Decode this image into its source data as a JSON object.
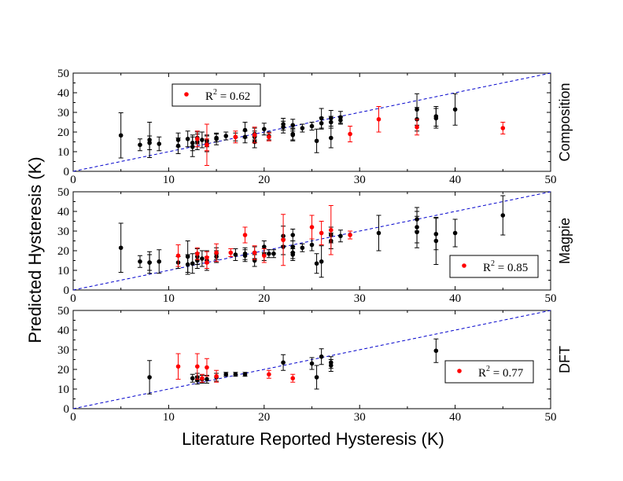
{
  "chart_data": [
    {
      "type": "scatter",
      "panel_label": "Composition",
      "legend": {
        "text": "R",
        "sup": "2",
        "rest": " = 0.62",
        "placement": "top-left"
      },
      "xlim": [
        0,
        50
      ],
      "ylim": [
        0,
        50
      ],
      "xticks": [
        "0",
        "10",
        "20",
        "30",
        "40",
        "50"
      ],
      "yticks": [
        "0",
        "10",
        "20",
        "30",
        "40",
        "50"
      ],
      "reference_line": {
        "from": [
          0,
          0
        ],
        "to": [
          50,
          50
        ],
        "style": "dashed",
        "color": "#0000cc"
      },
      "series": [
        {
          "color": "#000000",
          "points": [
            [
              5,
              18.3,
              11.5
            ],
            [
              7,
              13.5,
              3
            ],
            [
              8,
              14.5,
              3.5
            ],
            [
              8,
              16,
              9
            ],
            [
              9,
              14,
              3.5
            ],
            [
              11,
              13,
              4
            ],
            [
              11,
              16,
              3.5
            ],
            [
              12,
              16.5,
              4
            ],
            [
              12.5,
              14.5,
              4
            ],
            [
              12.5,
              12.5,
              5
            ],
            [
              13,
              17,
              3
            ],
            [
              13,
              15,
              4
            ],
            [
              13.5,
              16,
              4
            ],
            [
              14,
              14,
              4
            ],
            [
              14,
              15.5,
              3
            ],
            [
              15,
              17,
              2
            ],
            [
              15,
              16.5,
              3
            ],
            [
              16,
              18,
              2
            ],
            [
              17,
              17.5,
              2
            ],
            [
              18,
              21,
              4
            ],
            [
              18,
              17.5,
              3
            ],
            [
              19,
              15,
              3
            ],
            [
              19,
              17.5,
              3
            ],
            [
              19,
              19,
              3
            ],
            [
              20,
              21.5,
              3
            ],
            [
              20.5,
              18,
              2
            ],
            [
              22,
              24,
              3
            ],
            [
              22,
              22.5,
              3
            ],
            [
              23,
              23.5,
              3
            ],
            [
              23,
              18.5,
              3
            ],
            [
              23,
              19,
              3
            ],
            [
              24,
              22,
              2
            ],
            [
              25,
              23,
              2
            ],
            [
              25.5,
              15.5,
              6
            ],
            [
              26,
              27,
              5
            ],
            [
              26,
              24.5,
              3
            ],
            [
              27,
              17,
              5
            ],
            [
              27,
              27,
              4
            ],
            [
              27,
              25,
              3
            ],
            [
              28,
              26,
              2
            ],
            [
              28,
              27.5,
              3
            ],
            [
              36,
              31.5,
              8
            ],
            [
              36,
              26.5,
              6
            ],
            [
              38,
              28,
              5
            ],
            [
              38,
              27,
              5
            ],
            [
              40,
              31.5,
              8
            ]
          ]
        },
        {
          "color": "#ff0000",
          "points": [
            [
              13,
              16.5,
              4
            ],
            [
              14,
              13.5,
              10.5
            ],
            [
              14,
              13.5,
              3
            ],
            [
              17,
              17.5,
              3
            ],
            [
              19,
              18.5,
              4
            ],
            [
              20.5,
              17.5,
              2
            ],
            [
              29,
              19,
              4
            ],
            [
              32,
              26.5,
              6.5
            ],
            [
              36,
              22.5,
              4
            ],
            [
              45,
              22,
              3
            ]
          ]
        }
      ]
    },
    {
      "type": "scatter",
      "panel_label": "Magpie",
      "legend": {
        "text": "R",
        "sup": "2",
        "rest": " = 0.85",
        "placement": "bottom-right"
      },
      "xlim": [
        0,
        50
      ],
      "ylim": [
        0,
        50
      ],
      "xticks": [
        "0",
        "10",
        "20",
        "30",
        "40",
        "50"
      ],
      "yticks": [
        "0",
        "10",
        "20",
        "30",
        "40",
        "50"
      ],
      "reference_line": {
        "from": [
          0,
          0
        ],
        "to": [
          50,
          50
        ],
        "style": "dashed",
        "color": "#0000cc"
      },
      "series": [
        {
          "color": "#000000",
          "points": [
            [
              5,
              21.5,
              12.5
            ],
            [
              7,
              14.5,
              3
            ],
            [
              8,
              14,
              4
            ],
            [
              8,
              14,
              5.5
            ],
            [
              9,
              14.5,
              6
            ],
            [
              11,
              14,
              3
            ],
            [
              12,
              17,
              8
            ],
            [
              12,
              13,
              5
            ],
            [
              12.5,
              13.5,
              5
            ],
            [
              13,
              15,
              4
            ],
            [
              13,
              17,
              4
            ],
            [
              13.5,
              16,
              4
            ],
            [
              14,
              15,
              5
            ],
            [
              15,
              18.5,
              3
            ],
            [
              15,
              17,
              3
            ],
            [
              17,
              18,
              3
            ],
            [
              18,
              18.5,
              3
            ],
            [
              18,
              17.5,
              3
            ],
            [
              19,
              15,
              3
            ],
            [
              19,
              19,
              3
            ],
            [
              20,
              18,
              3
            ],
            [
              20,
              22,
              3
            ],
            [
              20.5,
              18.5,
              2
            ],
            [
              21,
              18.5,
              2
            ],
            [
              22,
              27.5,
              5
            ],
            [
              22,
              22,
              4
            ],
            [
              23,
              28,
              3
            ],
            [
              23,
              22,
              3
            ],
            [
              23,
              19,
              3
            ],
            [
              23,
              18,
              3
            ],
            [
              24,
              21.5,
              2
            ],
            [
              25,
              23,
              3
            ],
            [
              25.5,
              13.5,
              5
            ],
            [
              26,
              14.5,
              8
            ],
            [
              27,
              25,
              4
            ],
            [
              27,
              28,
              4
            ],
            [
              28,
              27.5,
              3
            ],
            [
              32,
              29,
              9
            ],
            [
              36,
              36,
              6
            ],
            [
              36,
              32,
              8
            ],
            [
              36,
              29.5,
              8
            ],
            [
              38,
              25,
              12
            ],
            [
              38,
              28.5,
              8
            ],
            [
              40,
              29,
              7
            ],
            [
              45,
              38,
              10
            ]
          ]
        },
        {
          "color": "#ff0000",
          "points": [
            [
              11,
              17.5,
              5.5
            ],
            [
              13,
              18.5,
              3
            ],
            [
              14,
              14,
              3
            ],
            [
              14,
              16.5,
              3
            ],
            [
              15,
              19,
              4.5
            ],
            [
              16.5,
              19,
              2
            ],
            [
              18,
              28,
              4
            ],
            [
              19,
              19,
              3.5
            ],
            [
              20,
              17.5,
              3.5
            ],
            [
              22,
              25.5,
              13
            ],
            [
              25,
              32,
              6
            ],
            [
              26,
              29,
              6
            ],
            [
              27,
              30.5,
              12.5
            ],
            [
              29,
              28,
              2
            ]
          ]
        }
      ]
    },
    {
      "type": "scatter",
      "panel_label": "DFT",
      "legend": {
        "text": "R",
        "sup": "2",
        "rest": " = 0.77",
        "placement": "bottom-right"
      },
      "xlim": [
        0,
        50
      ],
      "ylim": [
        0,
        50
      ],
      "xticks": [
        "0",
        "10",
        "20",
        "30",
        "40",
        "50"
      ],
      "yticks": [
        "0",
        "10",
        "20",
        "30",
        "40",
        "50"
      ],
      "reference_line": {
        "from": [
          0,
          0
        ],
        "to": [
          50,
          50
        ],
        "style": "dashed",
        "color": "#0000cc"
      },
      "series": [
        {
          "color": "#000000",
          "points": [
            [
              8,
              16,
              8.5
            ],
            [
              12.5,
              15.5,
              2
            ],
            [
              13,
              14.5,
              2
            ],
            [
              13,
              16,
              2
            ],
            [
              13.5,
              15,
              2
            ],
            [
              14,
              15,
              2
            ],
            [
              15,
              16,
              2
            ],
            [
              16,
              17.5,
              1
            ],
            [
              17,
              17.5,
              1
            ],
            [
              18,
              17.5,
              1
            ],
            [
              22,
              23.5,
              4
            ],
            [
              25,
              23,
              3
            ],
            [
              25.5,
              16,
              6
            ],
            [
              26,
              26.5,
              4
            ],
            [
              27,
              22,
              3
            ],
            [
              27,
              23.5,
              3
            ],
            [
              38,
              29.5,
              6
            ]
          ]
        },
        {
          "color": "#ff0000",
          "points": [
            [
              11,
              21.5,
              6.5
            ],
            [
              13,
              21.5,
              6.5
            ],
            [
              14,
              21,
              4.5
            ],
            [
              15,
              16.5,
              3
            ],
            [
              20.5,
              17.5,
              2
            ],
            [
              23,
              15.5,
              2
            ],
            [
              13.5,
              15.5,
              2
            ]
          ]
        }
      ]
    }
  ],
  "ylabel": "Predicted Hysteresis (K)",
  "xlabel": "Literature Reported Hysteresis (K)"
}
